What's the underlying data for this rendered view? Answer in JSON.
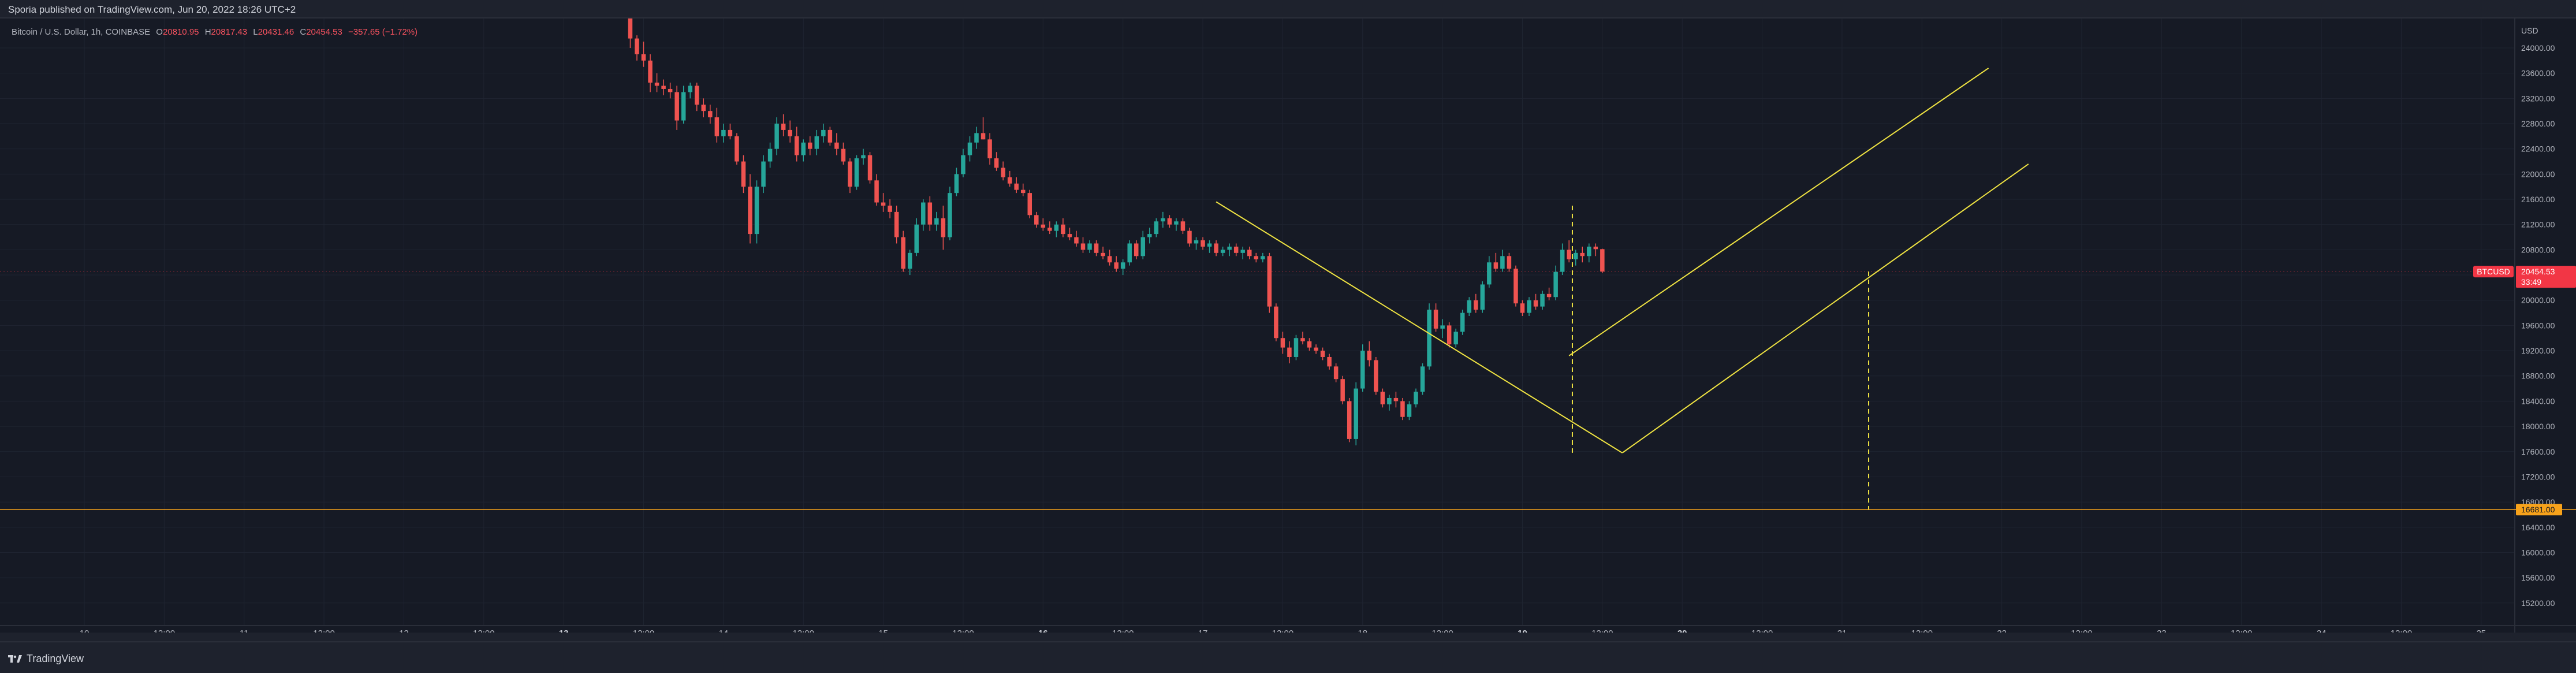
{
  "header": {
    "published": "Sporia published on TradingView.com, Jun 20, 2022 18:26 UTC+2"
  },
  "legend": {
    "symbol": "Bitcoin / U.S. Dollar, 1h, COINBASE",
    "open_label": "O",
    "open": "20810.95",
    "high_label": "H",
    "high": "20817.43",
    "low_label": "L",
    "low": "20431.46",
    "close_label": "C",
    "close": "20454.53",
    "change": "−357.65 (−1.72%)"
  },
  "footer": {
    "brand": "TradingView"
  },
  "colors": {
    "background": "#161a25",
    "up": "#26a69a",
    "down": "#ef5350",
    "trendline": "#f0e442",
    "support": "#f7a21b",
    "price_badge": "#f23645"
  },
  "chart_data": {
    "type": "candlestick",
    "symbol": "BTCUSD",
    "timeframe": "1h",
    "yunit": "USD",
    "y_axis_label": "USD",
    "ylim": [
      14900,
      24400
    ],
    "y_ticks": [
      24000,
      23600,
      23200,
      22800,
      22400,
      22000,
      21600,
      21200,
      20800,
      20400,
      20000,
      19600,
      19200,
      18800,
      18400,
      18000,
      17600,
      17200,
      16800,
      16400,
      16000,
      15600,
      15200
    ],
    "x_range": [
      -97,
      2592
    ],
    "x_ticks": [
      {
        "t": 0,
        "label": "10"
      },
      {
        "t": 12,
        "label": "12:00"
      },
      {
        "t": 24,
        "label": "11"
      },
      {
        "t": 36,
        "label": "12:00"
      },
      {
        "t": 48,
        "label": "12"
      },
      {
        "t": 60,
        "label": "12:00"
      },
      {
        "t": 72,
        "label": "13"
      },
      {
        "t": 84,
        "label": "12:00"
      },
      {
        "t": 96,
        "label": "14"
      },
      {
        "t": 108,
        "label": "12:00"
      },
      {
        "t": 120,
        "label": "15"
      },
      {
        "t": 132,
        "label": "12:00"
      },
      {
        "t": 144,
        "label": "16"
      },
      {
        "t": 156,
        "label": "12:00"
      },
      {
        "t": 168,
        "label": "17"
      },
      {
        "t": 180,
        "label": "12:00"
      },
      {
        "t": 192,
        "label": "18"
      },
      {
        "t": 204,
        "label": "12:00"
      },
      {
        "t": 216,
        "label": "19"
      },
      {
        "t": 228,
        "label": "12:00"
      },
      {
        "t": 240,
        "label": "20"
      },
      {
        "t": 252,
        "label": "12:00"
      },
      {
        "t": 264,
        "label": "21"
      },
      {
        "t": 276,
        "label": "12:00"
      },
      {
        "t": 288,
        "label": "22"
      },
      {
        "t": 300,
        "label": "12:00"
      },
      {
        "t": 312,
        "label": "23"
      },
      {
        "t": 324,
        "label": "12:00"
      },
      {
        "t": 336,
        "label": "24"
      },
      {
        "t": 348,
        "label": "12:00"
      },
      {
        "t": 360,
        "label": "25"
      }
    ],
    "x_tick_bold": [
      "13",
      "16",
      "19",
      "20"
    ],
    "x_tick_hours": [
      0,
      12,
      24,
      36,
      48,
      60,
      72,
      84,
      96,
      108,
      120,
      132,
      144,
      156,
      168,
      180,
      192,
      204,
      216,
      228,
      240,
      252,
      264,
      276,
      288,
      300,
      312,
      324,
      336,
      348,
      360
    ],
    "candles_start": 82,
    "candles": [
      [
        24500,
        24550,
        24000,
        24150
      ],
      [
        24150,
        24200,
        23800,
        23900
      ],
      [
        23900,
        24100,
        23700,
        23800
      ],
      [
        23800,
        23900,
        23300,
        23450
      ],
      [
        23450,
        23600,
        23300,
        23400
      ],
      [
        23400,
        23500,
        23250,
        23350
      ],
      [
        23350,
        23450,
        23200,
        23300
      ],
      [
        23300,
        23400,
        22700,
        22850
      ],
      [
        22850,
        23400,
        22800,
        23300
      ],
      [
        23300,
        23450,
        23200,
        23400
      ],
      [
        23400,
        23450,
        23000,
        23100
      ],
      [
        23100,
        23200,
        22900,
        23000
      ],
      [
        23000,
        23100,
        22800,
        22900
      ],
      [
        22900,
        23050,
        22500,
        22600
      ],
      [
        22600,
        22800,
        22500,
        22700
      ],
      [
        22700,
        22800,
        22550,
        22600
      ],
      [
        22600,
        22650,
        22150,
        22200
      ],
      [
        22200,
        22300,
        21700,
        21800
      ],
      [
        21800,
        22000,
        20900,
        21050
      ],
      [
        21050,
        21900,
        20900,
        21800
      ],
      [
        21800,
        22300,
        21700,
        22200
      ],
      [
        22200,
        22500,
        22100,
        22400
      ],
      [
        22400,
        22900,
        22300,
        22800
      ],
      [
        22800,
        22950,
        22600,
        22700
      ],
      [
        22700,
        22850,
        22500,
        22600
      ],
      [
        22600,
        22750,
        22200,
        22300
      ],
      [
        22300,
        22550,
        22200,
        22500
      ],
      [
        22500,
        22600,
        22300,
        22400
      ],
      [
        22400,
        22700,
        22300,
        22600
      ],
      [
        22600,
        22800,
        22500,
        22700
      ],
      [
        22700,
        22750,
        22450,
        22500
      ],
      [
        22500,
        22650,
        22300,
        22400
      ],
      [
        22400,
        22500,
        22150,
        22200
      ],
      [
        22200,
        22250,
        21700,
        21800
      ],
      [
        21800,
        22300,
        21750,
        22250
      ],
      [
        22250,
        22400,
        22150,
        22300
      ],
      [
        22300,
        22350,
        21850,
        21900
      ],
      [
        21900,
        22000,
        21500,
        21550
      ],
      [
        21550,
        21700,
        21400,
        21500
      ],
      [
        21500,
        21600,
        21300,
        21400
      ],
      [
        21400,
        21500,
        20900,
        21000
      ],
      [
        21000,
        21100,
        20450,
        20500
      ],
      [
        20500,
        20800,
        20400,
        20750
      ],
      [
        20750,
        21300,
        20700,
        21200
      ],
      [
        21200,
        21600,
        21100,
        21550
      ],
      [
        21550,
        21650,
        21100,
        21200
      ],
      [
        21200,
        21400,
        21100,
        21300
      ],
      [
        21300,
        21500,
        20800,
        21000
      ],
      [
        21000,
        21800,
        20950,
        21700
      ],
      [
        21700,
        22100,
        21650,
        22000
      ],
      [
        22000,
        22400,
        21950,
        22300
      ],
      [
        22300,
        22600,
        22200,
        22500
      ],
      [
        22500,
        22750,
        22400,
        22650
      ],
      [
        22650,
        22900,
        22550,
        22550
      ],
      [
        22550,
        22650,
        22150,
        22250
      ],
      [
        22250,
        22350,
        22050,
        22100
      ],
      [
        22100,
        22200,
        21900,
        21950
      ],
      [
        21950,
        22050,
        21800,
        21850
      ],
      [
        21850,
        21950,
        21700,
        21750
      ],
      [
        21750,
        21850,
        21650,
        21700
      ],
      [
        21700,
        21750,
        21300,
        21350
      ],
      [
        21350,
        21400,
        21150,
        21200
      ],
      [
        21200,
        21300,
        21100,
        21150
      ],
      [
        21150,
        21250,
        21050,
        21100
      ],
      [
        21100,
        21250,
        21000,
        21200
      ],
      [
        21200,
        21300,
        21000,
        21050
      ],
      [
        21050,
        21150,
        20950,
        21000
      ],
      [
        21000,
        21100,
        20850,
        20900
      ],
      [
        20900,
        21000,
        20750,
        20800
      ],
      [
        20800,
        20950,
        20750,
        20900
      ],
      [
        20900,
        20950,
        20700,
        20750
      ],
      [
        20750,
        20850,
        20650,
        20700
      ],
      [
        20700,
        20800,
        20550,
        20600
      ],
      [
        20600,
        20700,
        20450,
        20500
      ],
      [
        20500,
        20650,
        20400,
        20600
      ],
      [
        20600,
        20950,
        20550,
        20900
      ],
      [
        20900,
        20950,
        20650,
        20700
      ],
      [
        20700,
        21100,
        20650,
        21000
      ],
      [
        21000,
        21150,
        20900,
        21050
      ],
      [
        21050,
        21300,
        21000,
        21250
      ],
      [
        21250,
        21400,
        21150,
        21300
      ],
      [
        21300,
        21350,
        21150,
        21200
      ],
      [
        21200,
        21300,
        21100,
        21250
      ],
      [
        21250,
        21300,
        21050,
        21100
      ],
      [
        21100,
        21150,
        20850,
        20900
      ],
      [
        20900,
        21000,
        20800,
        20950
      ],
      [
        20950,
        21000,
        20800,
        20850
      ],
      [
        20850,
        20950,
        20750,
        20900
      ],
      [
        20900,
        20950,
        20700,
        20750
      ],
      [
        20750,
        20850,
        20700,
        20800
      ],
      [
        20800,
        20900,
        20700,
        20850
      ],
      [
        20850,
        20900,
        20700,
        20750
      ],
      [
        20750,
        20850,
        20650,
        20800
      ],
      [
        20800,
        20850,
        20650,
        20700
      ],
      [
        20700,
        20750,
        20600,
        20650
      ],
      [
        20650,
        20750,
        20600,
        20700
      ],
      [
        20700,
        20750,
        19800,
        19900
      ],
      [
        19900,
        19950,
        19350,
        19400
      ],
      [
        19400,
        19500,
        19150,
        19250
      ],
      [
        19250,
        19350,
        19000,
        19100
      ],
      [
        19100,
        19450,
        19050,
        19400
      ],
      [
        19400,
        19500,
        19300,
        19350
      ],
      [
        19350,
        19400,
        19200,
        19250
      ],
      [
        19250,
        19300,
        19150,
        19200
      ],
      [
        19200,
        19250,
        19050,
        19100
      ],
      [
        19100,
        19150,
        18900,
        18950
      ],
      [
        18950,
        19000,
        18700,
        18750
      ],
      [
        18750,
        18800,
        18350,
        18400
      ],
      [
        18400,
        18450,
        17750,
        17800
      ],
      [
        17800,
        18700,
        17700,
        18600
      ],
      [
        18600,
        19300,
        18550,
        19200
      ],
      [
        19200,
        19350,
        18950,
        19050
      ],
      [
        19050,
        19100,
        18500,
        18550
      ],
      [
        18550,
        18600,
        18300,
        18350
      ],
      [
        18350,
        18500,
        18250,
        18450
      ],
      [
        18450,
        18550,
        18300,
        18400
      ],
      [
        18400,
        18450,
        18100,
        18150
      ],
      [
        18150,
        18400,
        18100,
        18350
      ],
      [
        18350,
        18600,
        18300,
        18550
      ],
      [
        18550,
        19000,
        18500,
        18950
      ],
      [
        18950,
        19950,
        18900,
        19850
      ],
      [
        19850,
        19950,
        19500,
        19550
      ],
      [
        19550,
        19700,
        19400,
        19600
      ],
      [
        19600,
        19650,
        19250,
        19300
      ],
      [
        19300,
        19550,
        19250,
        19500
      ],
      [
        19500,
        19850,
        19450,
        19800
      ],
      [
        19800,
        20050,
        19750,
        20000
      ],
      [
        20000,
        20100,
        19800,
        19850
      ],
      [
        19850,
        20300,
        19800,
        20250
      ],
      [
        20250,
        20700,
        20200,
        20600
      ],
      [
        20600,
        20750,
        20450,
        20500
      ],
      [
        20500,
        20800,
        20450,
        20700
      ],
      [
        20700,
        20750,
        20450,
        20500
      ],
      [
        20500,
        20550,
        19900,
        19950
      ],
      [
        19950,
        20000,
        19750,
        19800
      ],
      [
        19800,
        20050,
        19750,
        20000
      ],
      [
        20000,
        20100,
        19850,
        19900
      ],
      [
        19900,
        20150,
        19850,
        20100
      ],
      [
        20100,
        20200,
        20000,
        20050
      ],
      [
        20050,
        20550,
        20000,
        20450
      ],
      [
        20450,
        20900,
        20400,
        20800
      ],
      [
        20800,
        20950,
        20600,
        20650
      ],
      [
        20650,
        20800,
        20550,
        20750
      ],
      [
        20750,
        20850,
        20600,
        20700
      ],
      [
        20700,
        20900,
        20600,
        20850
      ],
      [
        20850,
        20900,
        20700,
        20810
      ],
      [
        20810,
        20817,
        20431,
        20455
      ]
    ],
    "lines": [
      {
        "name": "descending-trendline",
        "from": [
          170,
          21560
        ],
        "to": [
          231,
          17580
        ]
      },
      {
        "name": "channel-lower-line",
        "from": [
          231,
          17580
        ],
        "to": [
          292,
          22160
        ]
      },
      {
        "name": "channel-upper-line",
        "from": [
          223,
          19120
        ],
        "to": [
          286,
          23680
        ]
      },
      {
        "name": "support-line",
        "from": [
          -61,
          16681
        ],
        "to": [
          2592,
          16681
        ]
      }
    ],
    "vlines": [
      {
        "name": "vline-left",
        "t": 223.5,
        "y_from": 21500,
        "y_to": 17580
      },
      {
        "name": "vline-right",
        "t": 268,
        "y_from": 20455,
        "y_to": 16681
      }
    ],
    "last_price": {
      "symbol": "BTCUSD",
      "price": "20454.53",
      "countdown": "33:49",
      "value": 20454.53
    },
    "support_level": {
      "label": "16681.00",
      "value": 16681
    }
  }
}
